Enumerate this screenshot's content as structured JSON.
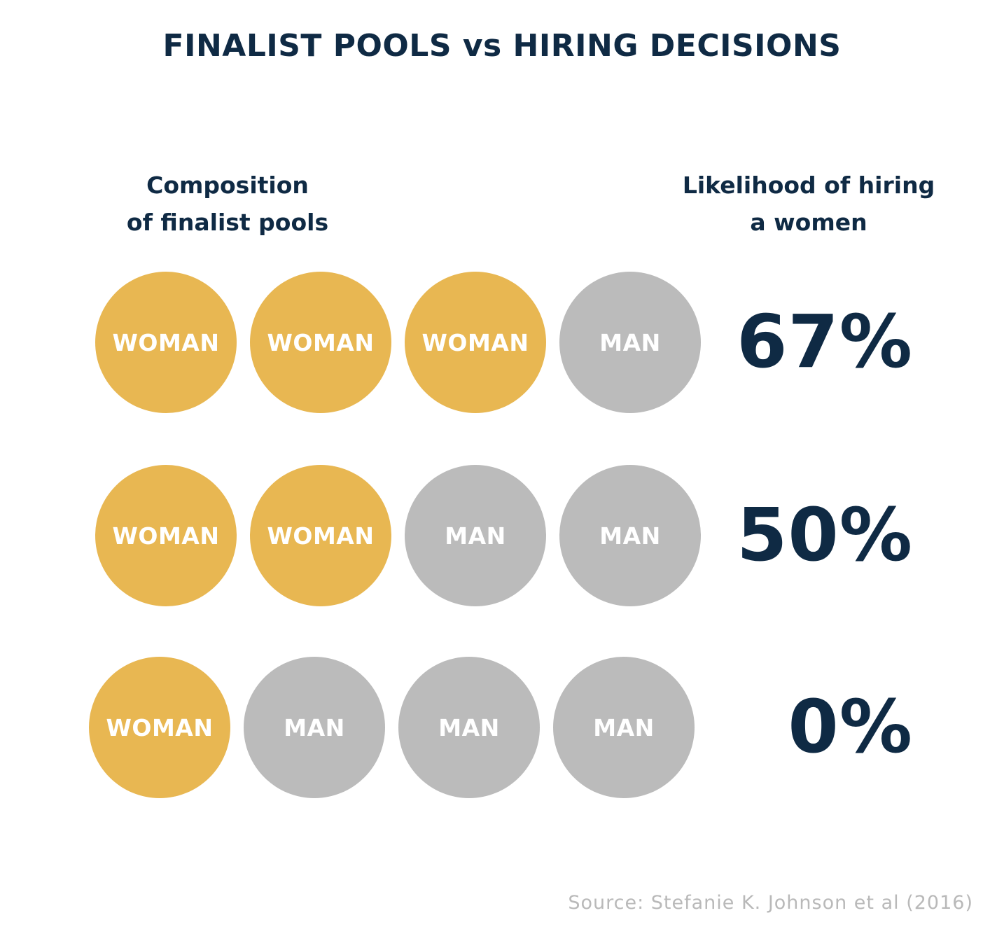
{
  "chart_data": {
    "type": "table",
    "title": "FINALIST POOLS vs HIRING DECISIONS",
    "column_headers": {
      "left": [
        "Composition",
        "of finalist pools"
      ],
      "right": [
        "Likelihood of hiring",
        "a women"
      ]
    },
    "labels": {
      "woman": "WOMAN",
      "man": "MAN"
    },
    "colors": {
      "woman": "#e8b752",
      "man": "#bbbbbb",
      "text_dark": "#0f2a44",
      "source": "#b9b9b9"
    },
    "rows": [
      {
        "pool": [
          "woman",
          "woman",
          "woman",
          "man"
        ],
        "likelihood": "67%",
        "value": 67
      },
      {
        "pool": [
          "woman",
          "woman",
          "man",
          "man"
        ],
        "likelihood": "50%",
        "value": 50
      },
      {
        "pool": [
          "woman",
          "man",
          "man",
          "man"
        ],
        "likelihood": "0%",
        "value": 0
      }
    ],
    "source": "Source: Stefanie K. Johnson et al (2016)"
  }
}
